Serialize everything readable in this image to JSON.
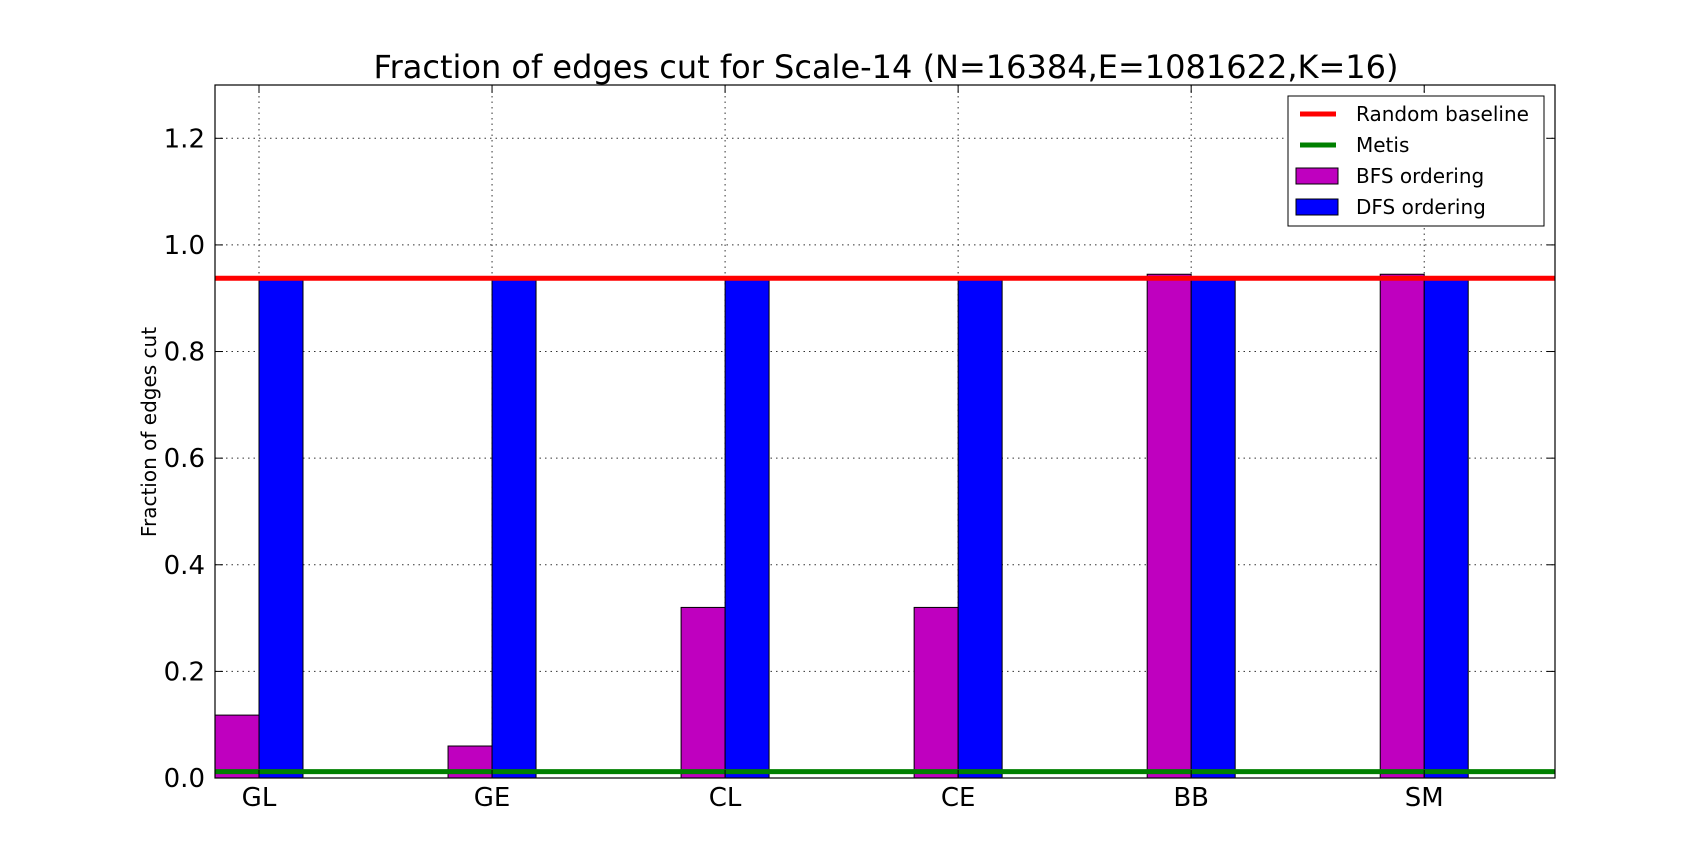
{
  "chart_data": {
    "type": "bar",
    "title": "Fraction of edges cut for Scale-14  (N=16384,E=1081622,K=16)",
    "xlabel": "",
    "ylabel": "Fraction of edges cut",
    "categories": [
      "GL",
      "GE",
      "CL",
      "CE",
      "BB",
      "SM"
    ],
    "yticks": [
      "0.0",
      "0.2",
      "0.4",
      "0.6",
      "0.8",
      "1.0",
      "1.2"
    ],
    "ylim": [
      0,
      1.3
    ],
    "grid": true,
    "legend_position": "top-right",
    "series": [
      {
        "name": "BFS ordering",
        "color": "#bf00bf",
        "values": [
          0.118,
          0.06,
          0.32,
          0.32,
          0.945,
          0.945
        ]
      },
      {
        "name": "DFS ordering",
        "color": "#0000ff",
        "values": [
          0.935,
          0.935,
          0.935,
          0.935,
          0.935,
          0.935
        ]
      }
    ],
    "reference_lines": [
      {
        "name": "Random baseline",
        "color": "#ff0000",
        "value": 0.9375
      },
      {
        "name": "Metis",
        "color": "#008000",
        "value": 0.012
      }
    ]
  }
}
